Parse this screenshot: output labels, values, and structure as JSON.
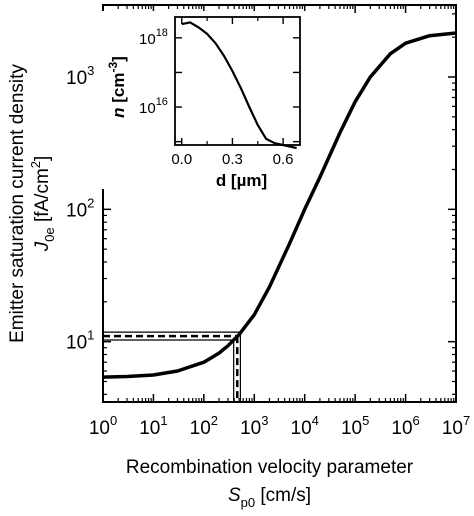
{
  "chart_data": [
    {
      "type": "line",
      "role": "main",
      "xscale": "log",
      "yscale": "log",
      "xlim": [
        1,
        10000000
      ],
      "ylim": [
        3.5,
        3500
      ],
      "x_ticks": [
        {
          "value": 1,
          "base": "10",
          "exp": "0"
        },
        {
          "value": 10,
          "base": "10",
          "exp": "1"
        },
        {
          "value": 100,
          "base": "10",
          "exp": "2"
        },
        {
          "value": 1000,
          "base": "10",
          "exp": "3"
        },
        {
          "value": 10000,
          "base": "10",
          "exp": "4"
        },
        {
          "value": 100000,
          "base": "10",
          "exp": "5"
        },
        {
          "value": 1000000,
          "base": "10",
          "exp": "6"
        },
        {
          "value": 10000000,
          "base": "10",
          "exp": "7"
        }
      ],
      "y_ticks": [
        {
          "value": 10,
          "base": "10",
          "exp": "1"
        },
        {
          "value": 100,
          "base": "10",
          "exp": "2"
        },
        {
          "value": 1000,
          "base": "10",
          "exp": "3"
        }
      ],
      "xlabel": {
        "line1": "Recombination velocity parameter",
        "sym": "S",
        "sub": "p0",
        "unit": " [cm/s]"
      },
      "ylabel": {
        "line1": "Emitter saturation current density",
        "sym": "J",
        "sub": "0e",
        "unit_a": " [fA/cm",
        "unit_sup": "2",
        "unit_b": "]"
      },
      "series": [
        {
          "style": "solid-thick",
          "x": [
            1,
            3,
            10,
            30,
            100,
            200,
            300,
            500,
            1000,
            2000,
            5000,
            10000,
            20000,
            50000,
            100000,
            200000,
            500000,
            1000000,
            3000000,
            10000000
          ],
          "y": [
            5.4,
            5.45,
            5.6,
            6.0,
            7.0,
            8.2,
            9.3,
            11.3,
            16,
            26,
            55,
            100,
            175,
            380,
            650,
            1000,
            1500,
            1800,
            2050,
            2150
          ]
        }
      ],
      "uncertainty": {
        "y_center": 11.0,
        "y_band": [
          10.3,
          11.8
        ],
        "x_center": 460,
        "x_band": [
          390,
          530
        ]
      }
    },
    {
      "type": "line",
      "role": "inset",
      "xscale": "linear",
      "yscale": "log",
      "xlim": [
        -0.04,
        0.7
      ],
      "ylim": [
        800000000000000,
        4000000000000000000
      ],
      "x_ticks": [
        {
          "value": 0.0,
          "label": "0.0"
        },
        {
          "value": 0.3,
          "label": "0.3"
        },
        {
          "value": 0.6,
          "label": "0.6"
        }
      ],
      "y_ticks": [
        {
          "value": 10000000000000000,
          "base": "10",
          "exp": "16"
        },
        {
          "value": 1000000000000000000,
          "base": "10",
          "exp": "18"
        }
      ],
      "xlabel": "d [µm]",
      "ylabel": {
        "sym": "n",
        "unit_a": " [cm",
        "unit_sup": "-3",
        "unit_b": "]"
      },
      "series": [
        {
          "style": "solid",
          "x": [
            0.0,
            0.05,
            0.1,
            0.15,
            0.2,
            0.25,
            0.3,
            0.35,
            0.4,
            0.45,
            0.5,
            0.55,
            0.6,
            0.68
          ],
          "y": [
            2.5e+18,
            2.8e+18,
            2e+18,
            1.3e+18,
            7e+17,
            3e+17,
            1.1e+17,
            3.5e+16,
            1e+16,
            3000000000000000.0,
            1200000000000000.0,
            900000000000000.0,
            800000000000000.0,
            650000000000000.0
          ]
        }
      ]
    }
  ]
}
